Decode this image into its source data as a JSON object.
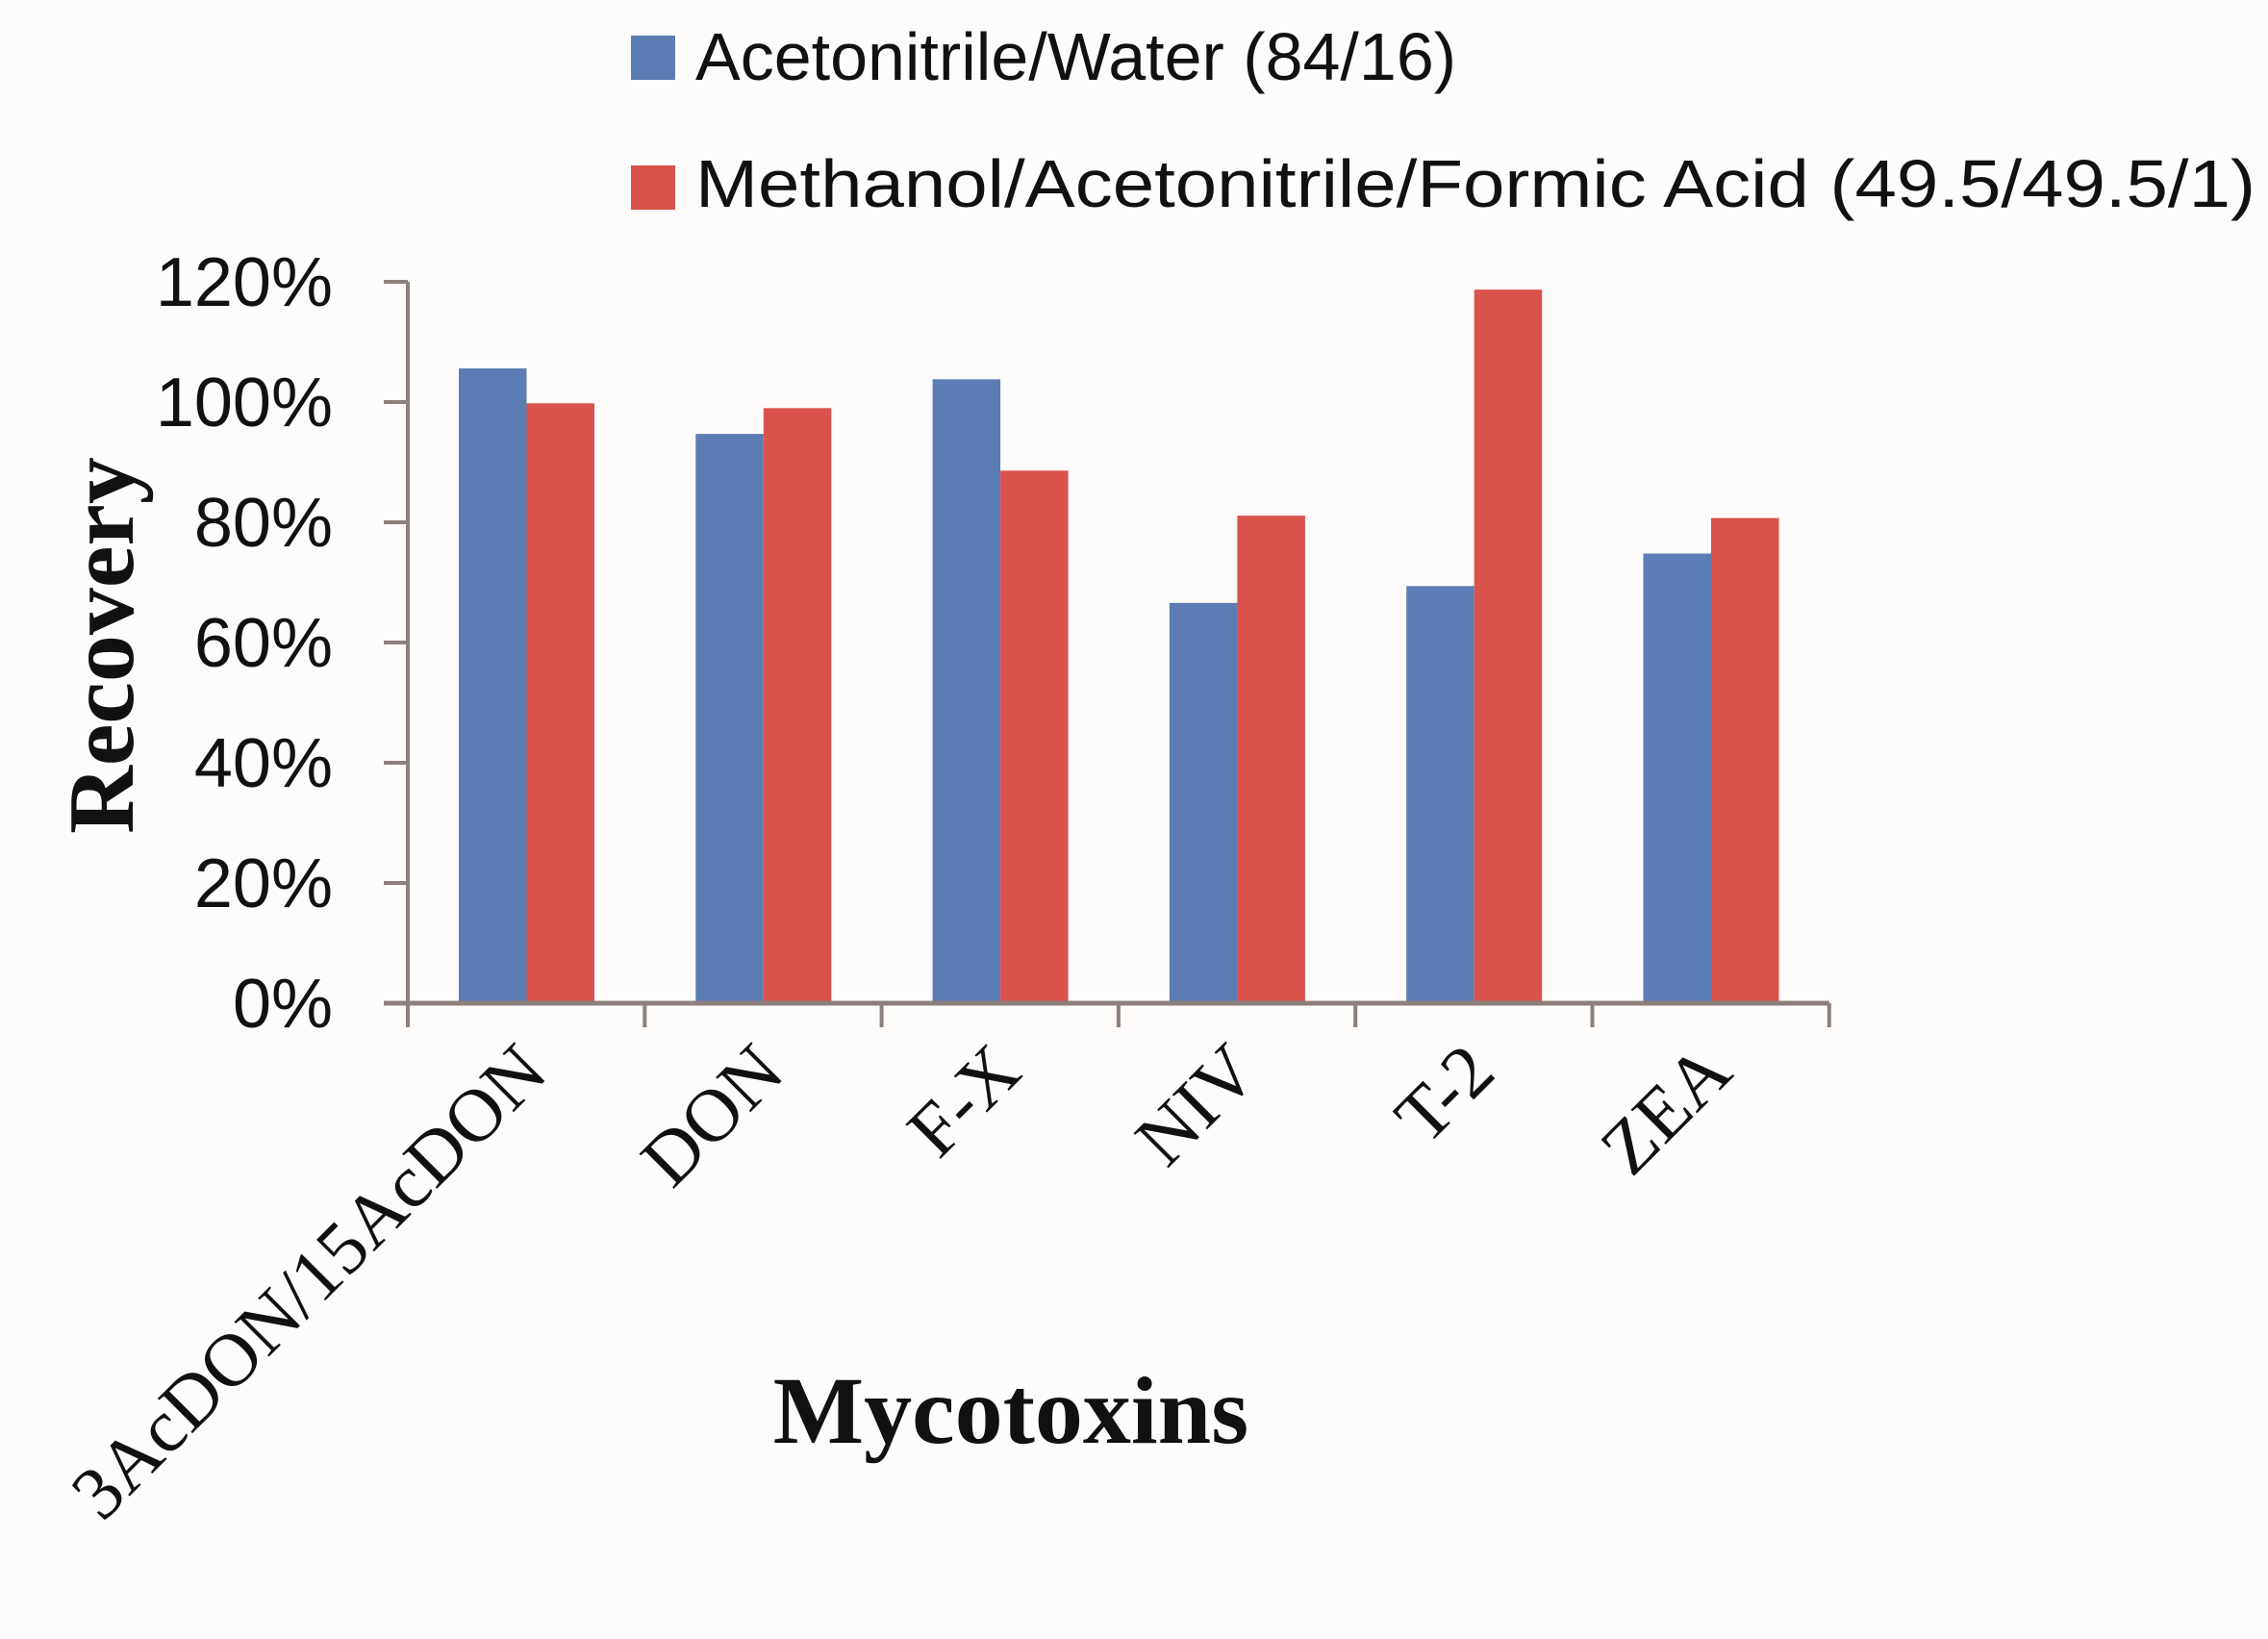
{
  "chart_data": {
    "type": "bar",
    "title": "",
    "xlabel": "Mycotoxins",
    "ylabel": "Recovery",
    "categories": [
      "3AcDON/15AcDON",
      "DON",
      "F-X",
      "NIV",
      "T-2",
      "ZEA"
    ],
    "series": [
      {
        "name": "Acetonitrile/Water (84/16)",
        "color": "#5B7DB3",
        "values": [
          105.6,
          94.7,
          103.8,
          66.6,
          69.4,
          74.8
        ]
      },
      {
        "name": "Methanol/Acetonitrile/Formic Acid (49.5/49.5/1)",
        "color": "#D9534C",
        "values": [
          99.8,
          99.0,
          88.6,
          81.1,
          118.7,
          80.7
        ]
      }
    ],
    "yticks": [
      "0%",
      "20%",
      "40%",
      "60%",
      "80%",
      "100%",
      "120%"
    ],
    "ylim": [
      0,
      120
    ],
    "grid": false,
    "legend_position": "top"
  },
  "legend": {
    "items": [
      {
        "label": "Acetonitrile/Water (84/16)",
        "color": "#5B7DB3"
      },
      {
        "label": "Methanol/Acetonitrile/Formic Acid (49.5/49.5/1)",
        "color": "#D9534C"
      }
    ]
  },
  "axes": {
    "x_title": "Mycotoxins",
    "y_title": "Recovery",
    "axis_color": "#8C7F7C"
  }
}
